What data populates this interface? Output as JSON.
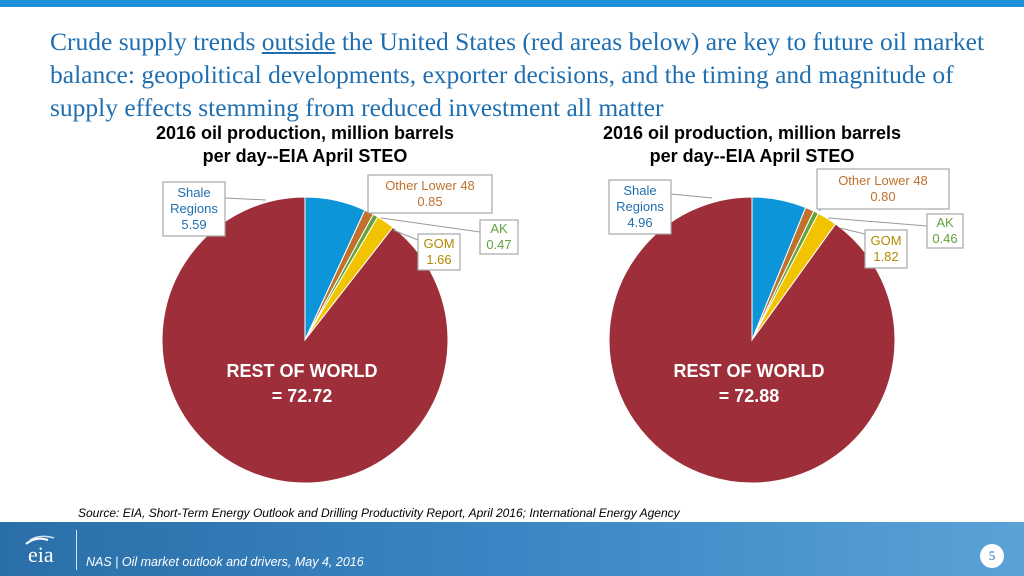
{
  "headline": {
    "part1": "Crude supply trends ",
    "underlined": "outside",
    "part2": " the United States (red areas below) are key to future oil market balance: geopolitical developments, exporter decisions, and the timing and magnitude of supply effects stemming from reduced investment all matter"
  },
  "chart_data": [
    {
      "type": "pie",
      "title_line1": "2016 oil production, million barrels",
      "title_line2": "per day--EIA April STEO",
      "slices": [
        {
          "name": "Shale Regions",
          "label_lines": [
            "Shale",
            "Regions"
          ],
          "value": 5.59,
          "color": "#0c95d8"
        },
        {
          "name": "Other Lower 48",
          "label_lines": [
            "Other Lower 48"
          ],
          "value": 0.85,
          "color": "#c0712d"
        },
        {
          "name": "AK",
          "label_lines": [
            "AK"
          ],
          "value": 0.47,
          "color": "#63a33a"
        },
        {
          "name": "GOM",
          "label_lines": [
            "GOM"
          ],
          "value": 1.66,
          "color": "#f2c400"
        },
        {
          "name": "REST OF WORLD",
          "label_lines": [
            "REST OF WORLD"
          ],
          "value": 72.72,
          "color": "#9e2f3a"
        }
      ]
    },
    {
      "type": "pie",
      "title_line1": "2016 oil production, million barrels",
      "title_line2": "per day--EIA April STEO",
      "slices": [
        {
          "name": "Shale Regions",
          "label_lines": [
            "Shale",
            "Regions"
          ],
          "value": 4.96,
          "color": "#0c95d8"
        },
        {
          "name": "Other Lower 48",
          "label_lines": [
            "Other Lower 48"
          ],
          "value": 0.8,
          "color": "#c0712d"
        },
        {
          "name": "AK",
          "label_lines": [
            "AK"
          ],
          "value": 0.46,
          "color": "#63a33a"
        },
        {
          "name": "GOM",
          "label_lines": [
            "GOM"
          ],
          "value": 1.82,
          "color": "#f2c400"
        },
        {
          "name": "REST OF WORLD",
          "label_lines": [
            "REST OF WORLD"
          ],
          "value": 72.88,
          "color": "#9e2f3a"
        }
      ]
    }
  ],
  "source": "Source: EIA, Short-Term Energy Outlook and Drilling Productivity Report, April 2016;  International Energy Agency",
  "footer": {
    "logo_text": "eia",
    "text": "NAS | Oil market outlook and drivers, May 4, 2016",
    "page": "5"
  },
  "colors": {
    "accent": "#1f8fd8",
    "headline": "#1f6fb0",
    "label_text": "#1f6fb0",
    "callout_text_orange": "#c0712d",
    "callout_text_green": "#63a33a",
    "callout_text_gold": "#b08a00"
  }
}
